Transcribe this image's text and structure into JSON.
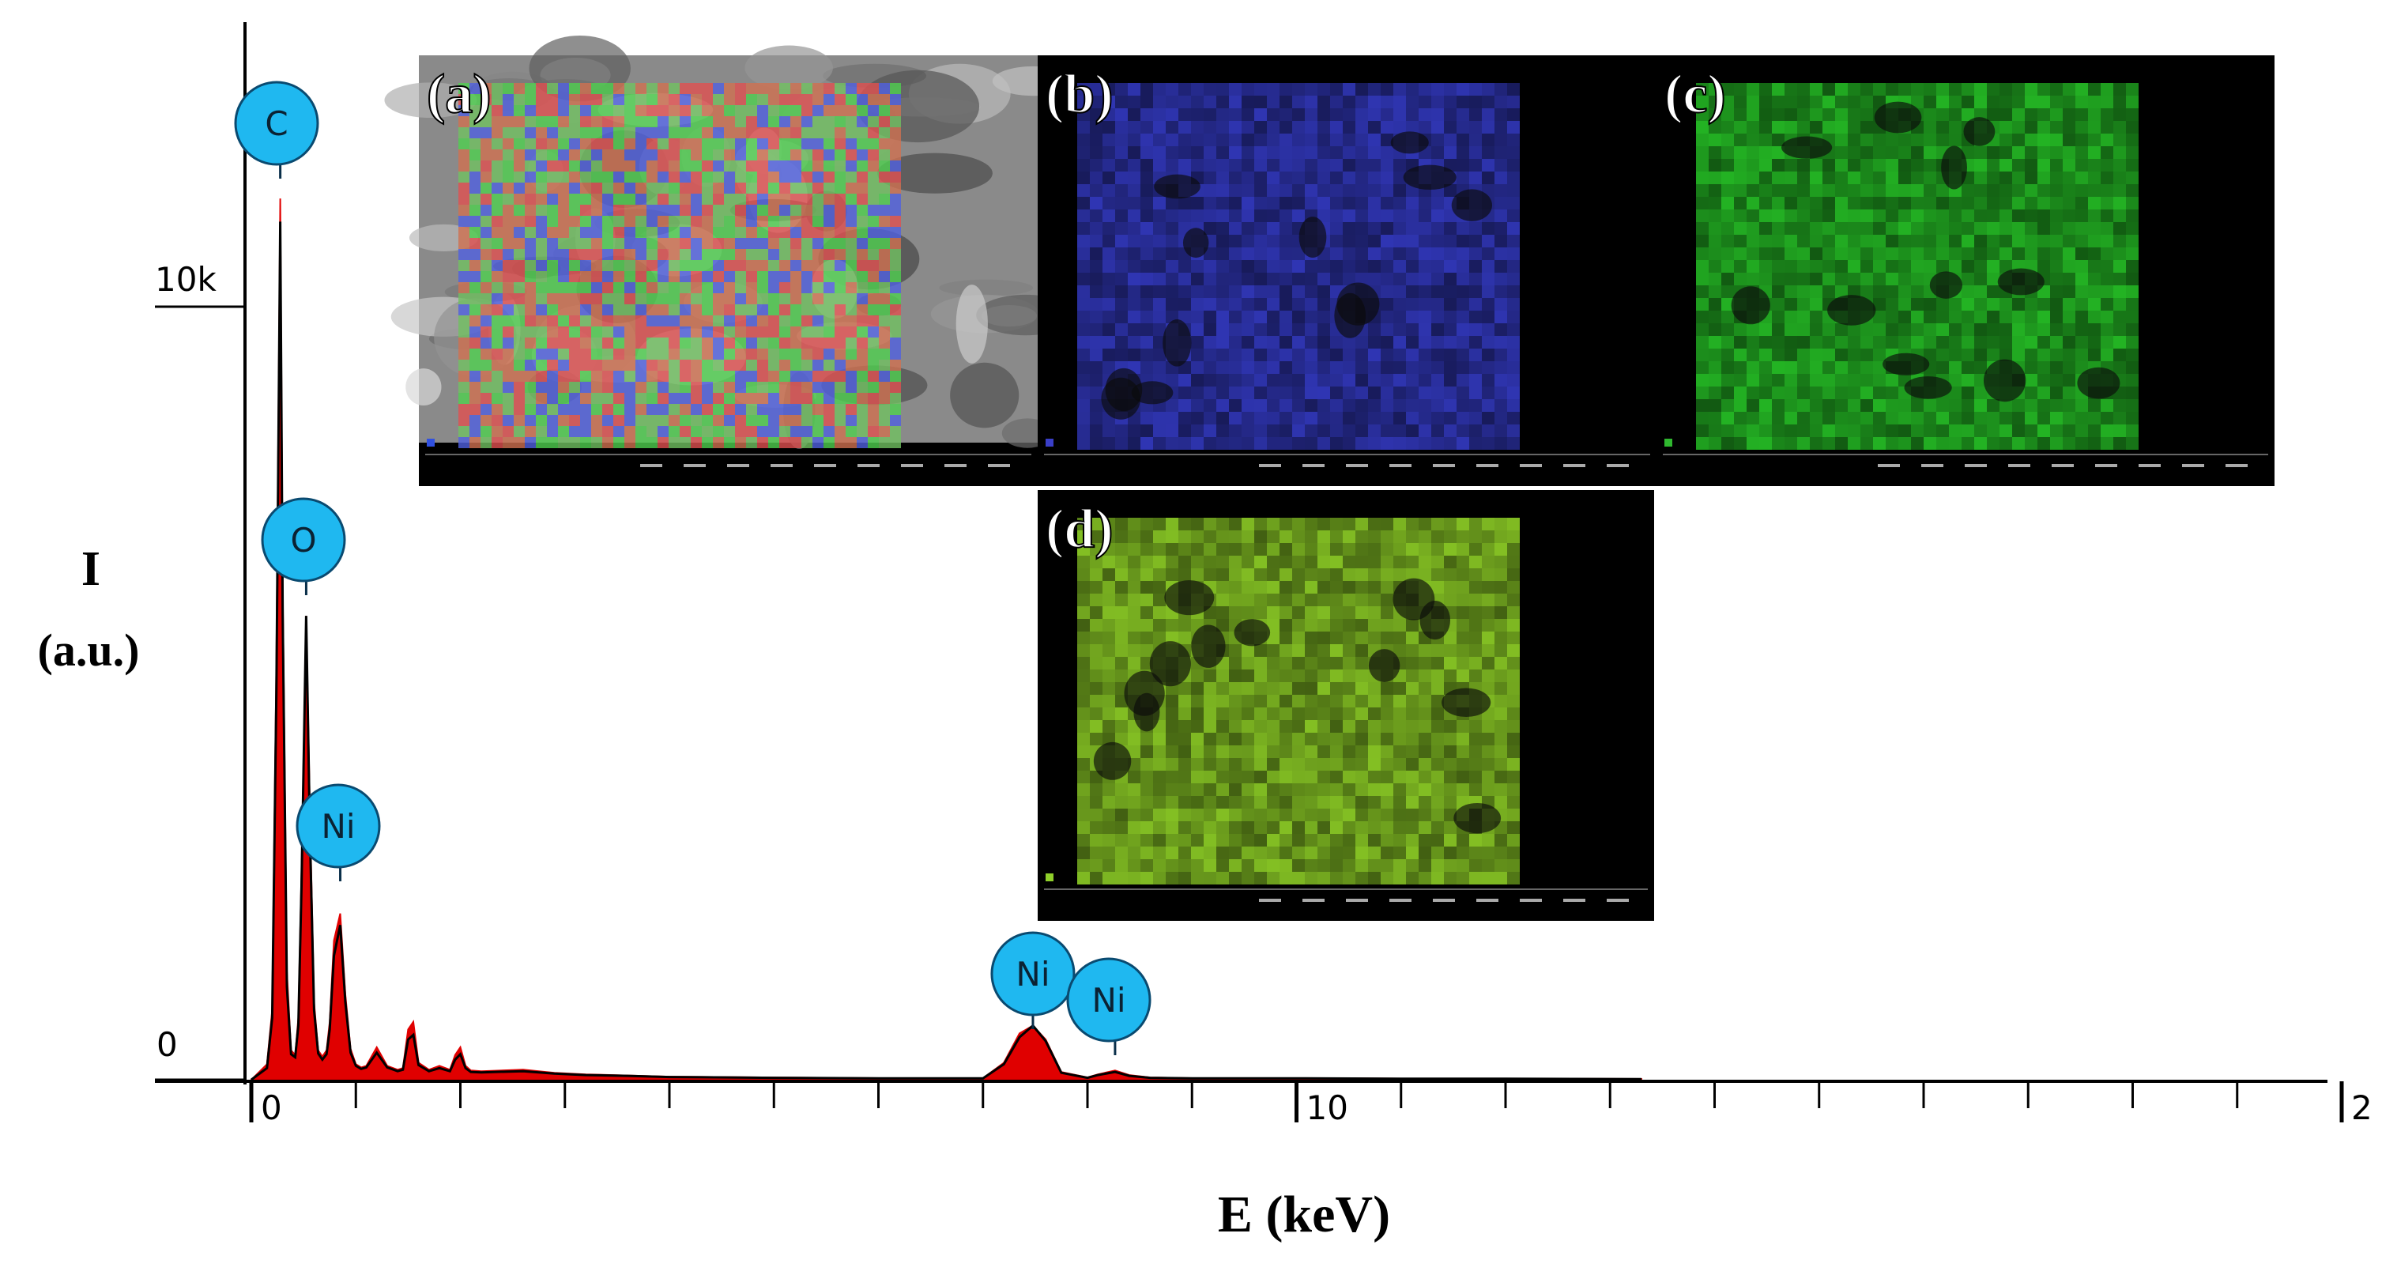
{
  "chart_data": {
    "type": "line",
    "title": "",
    "xlabel": "E (keV)",
    "ylabel": "I",
    "ylabel_unit": "(a.u.)",
    "xlim": [
      0,
      20
    ],
    "ylim": [
      0,
      10000
    ],
    "y_tick_labels": [
      "0",
      "10k"
    ],
    "x_tick_labels": [
      "0",
      "10",
      "2"
    ],
    "grid": false,
    "series": [
      {
        "color": "#e00000",
        "x": [
          0.0,
          0.15,
          0.2,
          0.24,
          0.277,
          0.3,
          0.34,
          0.38,
          0.42,
          0.45,
          0.48,
          0.525,
          0.56,
          0.6,
          0.64,
          0.68,
          0.72,
          0.75,
          0.79,
          0.851,
          0.9,
          0.95,
          1.0,
          1.05,
          1.1,
          1.2,
          1.3,
          1.4,
          1.45,
          1.5,
          1.55,
          1.6,
          1.7,
          1.8,
          1.9,
          1.95,
          2.0,
          2.05,
          2.1,
          2.2,
          2.6,
          2.9,
          3.2,
          3.6,
          4.0,
          5.0,
          6.0,
          7.0,
          7.2,
          7.35,
          7.478,
          7.6,
          7.75,
          8.0,
          8.1,
          8.264,
          8.4,
          8.6,
          9.0,
          10.0,
          11.0,
          12.0,
          13.3
        ],
        "values": [
          0,
          200,
          900,
          5400,
          11400,
          6400,
          1400,
          380,
          320,
          800,
          2700,
          6000,
          3500,
          1000,
          380,
          300,
          380,
          750,
          1800,
          2150,
          1100,
          400,
          200,
          160,
          180,
          420,
          180,
          130,
          150,
          650,
          750,
          220,
          130,
          180,
          130,
          320,
          420,
          180,
          120,
          110,
          130,
          90,
          70,
          55,
          40,
          30,
          20,
          20,
          220,
          600,
          700,
          520,
          100,
          30,
          70,
          120,
          60,
          30,
          20,
          20,
          15,
          15,
          10
        ]
      },
      {
        "color": "#000000",
        "x": [
          0.0,
          0.15,
          0.2,
          0.24,
          0.277,
          0.3,
          0.34,
          0.38,
          0.42,
          0.45,
          0.48,
          0.525,
          0.56,
          0.6,
          0.64,
          0.68,
          0.72,
          0.75,
          0.79,
          0.851,
          0.9,
          0.95,
          1.0,
          1.05,
          1.1,
          1.2,
          1.3,
          1.4,
          1.45,
          1.5,
          1.55,
          1.6,
          1.7,
          1.8,
          1.9,
          1.95,
          2.0,
          2.05,
          2.1,
          2.2,
          2.6,
          2.9,
          3.2,
          3.6,
          4.0,
          5.0,
          6.0,
          7.0,
          7.2,
          7.35,
          7.478,
          7.6,
          7.75,
          8.0,
          8.1,
          8.264,
          8.4,
          8.6,
          9.0,
          10.0,
          11.0,
          12.0,
          13.3
        ],
        "values": [
          0,
          150,
          800,
          5000,
          11100,
          6000,
          1200,
          330,
          290,
          700,
          2500,
          6000,
          3200,
          900,
          340,
          260,
          330,
          650,
          1600,
          2000,
          1000,
          350,
          180,
          140,
          160,
          350,
          160,
          110,
          130,
          520,
          580,
          190,
          110,
          150,
          110,
          260,
          330,
          150,
          100,
          95,
          110,
          80,
          60,
          50,
          35,
          25,
          18,
          18,
          200,
          550,
          700,
          500,
          90,
          25,
          60,
          100,
          50,
          25,
          18,
          18,
          12,
          12,
          8
        ]
      }
    ],
    "annotations": [
      {
        "label": "C",
        "x": 0.277
      },
      {
        "label": "O",
        "x": 0.525
      },
      {
        "label": "Ni",
        "x": 0.851
      },
      {
        "label": "Ni",
        "x": 7.478
      },
      {
        "label": "Ni",
        "x": 8.264
      }
    ]
  },
  "insets": [
    {
      "label": "(a)",
      "map": "overlay",
      "accent": "#3050e0"
    },
    {
      "label": "(b)",
      "map": "blue",
      "accent": "#3a3fc8"
    },
    {
      "label": "(c)",
      "map": "green",
      "accent": "#2fb82f"
    },
    {
      "label": "(d)",
      "map": "yellow-green",
      "accent": "#8fcf2a"
    }
  ],
  "colors": {
    "marker_fill": "#1fb8f0",
    "marker_stroke": "#0a4a70",
    "axis": "#000000"
  }
}
